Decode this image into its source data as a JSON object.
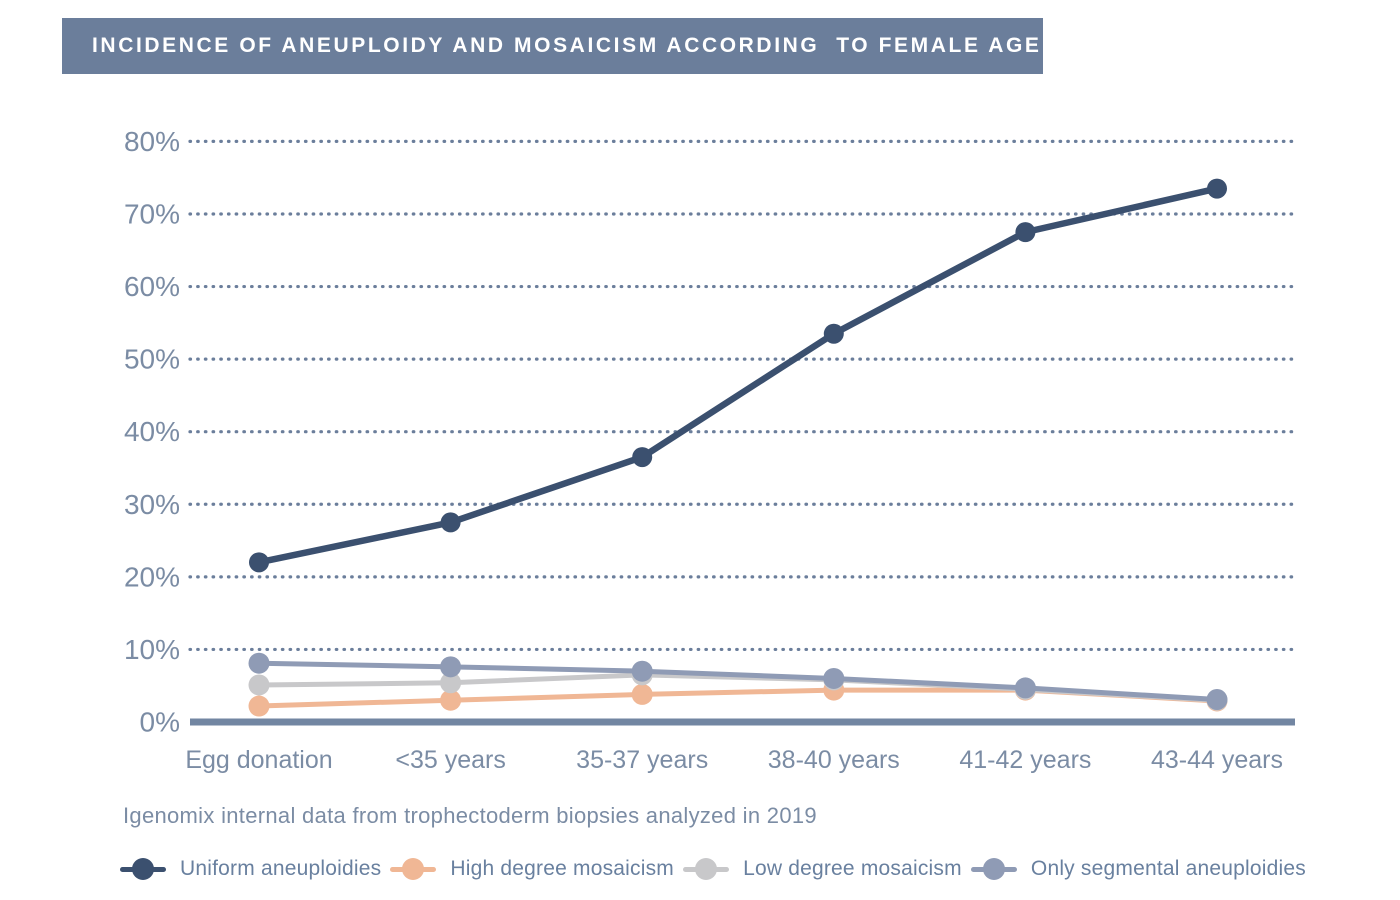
{
  "title": {
    "text": "INCIDENCE OF ANEUPLOIDY AND MOSAICISM ACCORDING  TO FEMALE AGE",
    "bg_color": "#6b7e9b",
    "text_color": "#ffffff"
  },
  "footnote": "Igenomix internal data from trophectoderm biopsies analyzed in 2019",
  "axis_colors": {
    "tick_text": "#7b8ca4",
    "gridline_dots": "#6b7e9b",
    "baseline": "#7286a2"
  },
  "chart_data": {
    "type": "line",
    "title": "INCIDENCE OF ANEUPLOIDY AND MOSAICISM ACCORDING  TO FEMALE AGE",
    "xlabel": "",
    "ylabel": "",
    "ylim": [
      0,
      80
    ],
    "ytick_step": 10,
    "ytick_labels": [
      "0%",
      "10%",
      "20%",
      "30%",
      "40%",
      "50%",
      "60%",
      "70%",
      "80%"
    ],
    "grid": "dotted-horizontal",
    "legend_position": "bottom",
    "categories": [
      "Egg donation",
      "<35 years",
      "35-37 years",
      "38-40 years",
      "41-42 years",
      "43-44 years"
    ],
    "series": [
      {
        "name": "Uniform aneuploidies",
        "color": "#3b506f",
        "values": [
          22.0,
          27.5,
          36.5,
          53.5,
          67.5,
          73.5
        ]
      },
      {
        "name": "High degree mosaicism",
        "color": "#f0b795",
        "values": [
          2.2,
          3.0,
          3.8,
          4.4,
          4.4,
          2.9
        ]
      },
      {
        "name": "Low degree mosaicism",
        "color": "#c8c8ca",
        "values": [
          5.1,
          5.4,
          6.5,
          5.8,
          4.5,
          3.0
        ]
      },
      {
        "name": "Only segmental aneuploidies",
        "color": "#8f9bb5",
        "values": [
          8.1,
          7.6,
          7.0,
          6.0,
          4.7,
          3.1
        ]
      }
    ]
  }
}
